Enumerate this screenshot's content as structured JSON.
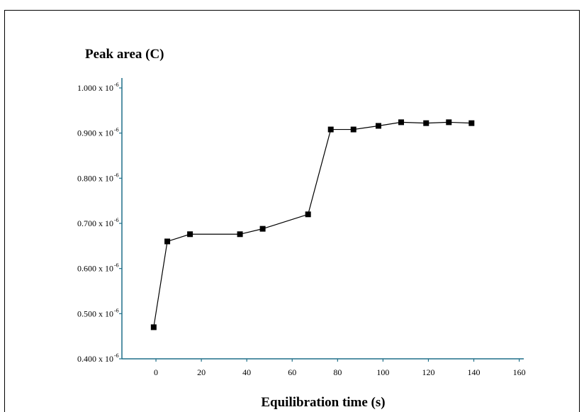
{
  "chart_data": {
    "type": "line",
    "title": "",
    "ylabel": "Peak area (C)",
    "xlabel": "Equilibration time (s)",
    "xlim": [
      -15,
      162
    ],
    "ylim": [
      0.4,
      1.0
    ],
    "x_ticks": [
      0,
      20,
      40,
      60,
      80,
      100,
      120,
      140,
      160
    ],
    "x_tick_labels": [
      "0",
      "20",
      "40",
      "60",
      "80",
      "100",
      "120",
      "140",
      "160"
    ],
    "y_ticks": [
      0.4,
      0.5,
      0.6,
      0.7,
      0.8,
      0.9,
      1.0
    ],
    "y_tick_labels": [
      "0.400 x 10",
      "0.500 x 10",
      "0.600 x 10",
      "0.700 x 10",
      "0.800 x 10",
      "0.900 x 10",
      "1.000 x 10"
    ],
    "y_tick_exponent": "-6",
    "grid": false,
    "series": [
      {
        "marker": "square",
        "color": "#000000",
        "x": [
          -1,
          5,
          15,
          37,
          47,
          67,
          77,
          87,
          98,
          108,
          119,
          129,
          139
        ],
        "y": [
          0.47,
          0.66,
          0.676,
          0.676,
          0.688,
          0.72,
          0.908,
          0.908,
          0.916,
          0.924,
          0.922,
          0.924,
          0.922
        ]
      }
    ]
  }
}
